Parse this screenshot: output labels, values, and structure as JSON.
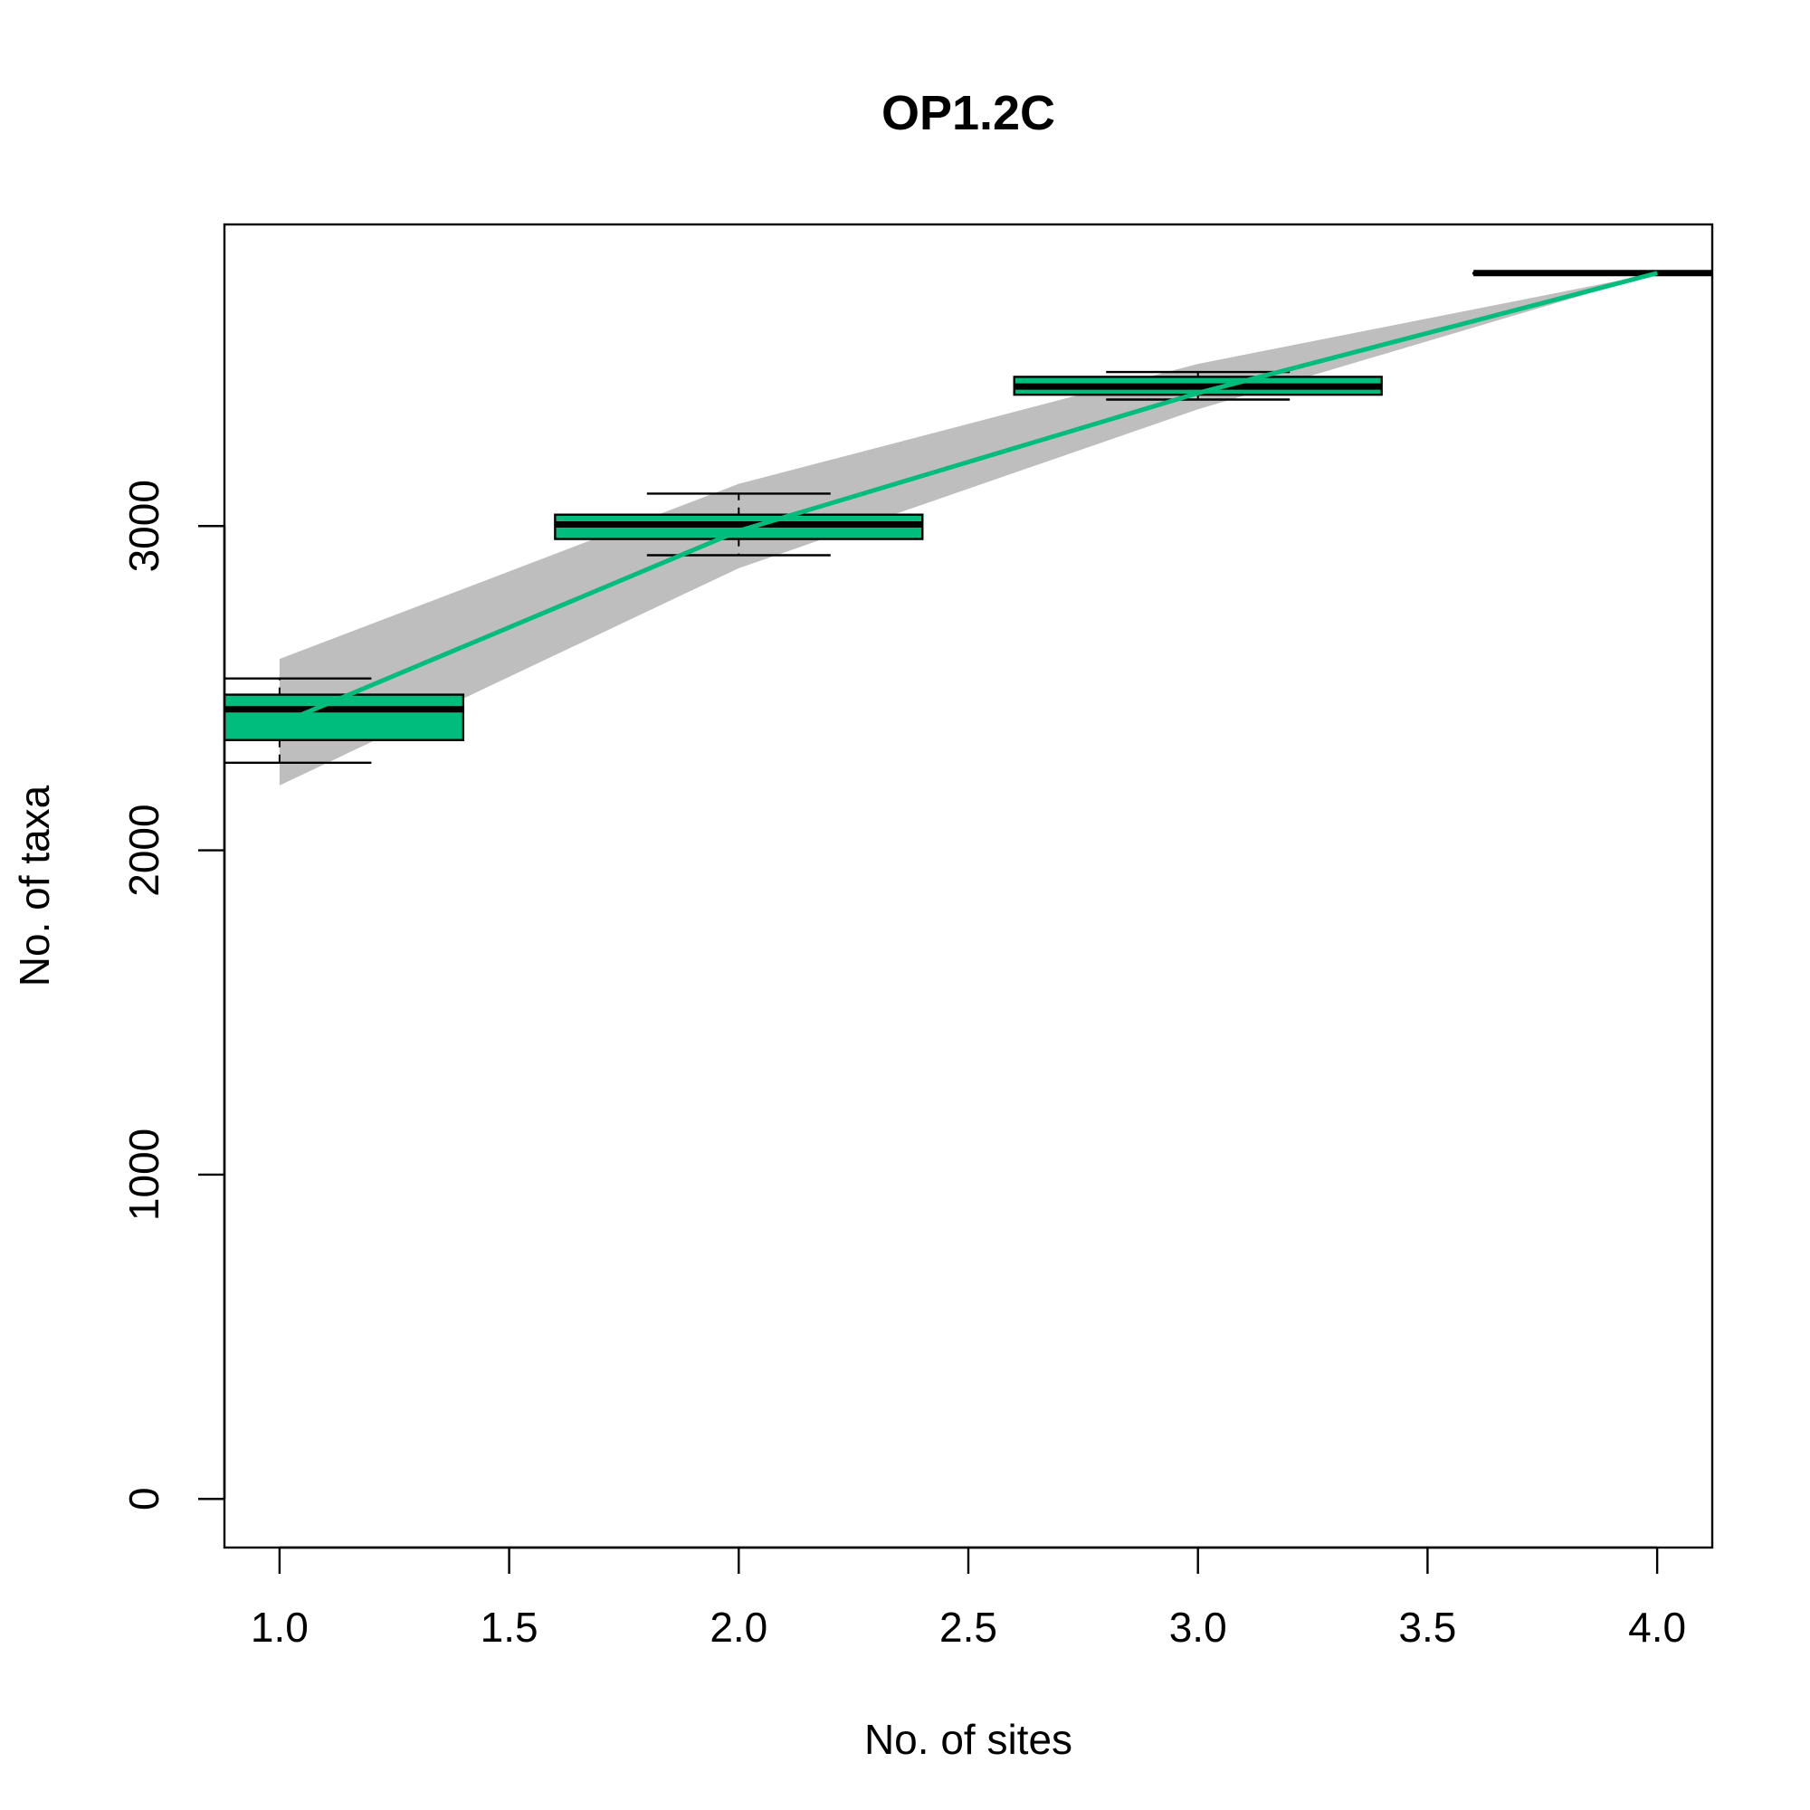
{
  "chart_data": {
    "type": "box",
    "title": "OP1.2C",
    "xlabel": "No. of sites",
    "ylabel": "No. of taxa",
    "xlim": [
      0.88,
      4.12
    ],
    "ylim": [
      -150,
      3930
    ],
    "xticks": [
      "1.0",
      "1.5",
      "2.0",
      "2.5",
      "3.0",
      "3.5",
      "4.0"
    ],
    "yticks": [
      "0",
      "1000",
      "2000",
      "3000"
    ],
    "grid": false,
    "colors": {
      "box_fill": "#00BD7D",
      "curve": "#00BD7D",
      "ci_band": "#BEBEBE",
      "ink": "#000000"
    },
    "curve": {
      "x": [
        1,
        2,
        3,
        4
      ],
      "y": [
        2390,
        2985,
        3410,
        3780
      ]
    },
    "ci_band": {
      "x": [
        1,
        2,
        3,
        4
      ],
      "upper": [
        2590,
        3130,
        3500,
        3780
      ],
      "lower": [
        2200,
        2870,
        3360,
        3780
      ]
    },
    "boxes": [
      {
        "x": 1,
        "whisker_low": 2270,
        "q1": 2340,
        "median": 2435,
        "q3": 2480,
        "whisker_high": 2530
      },
      {
        "x": 2,
        "whisker_low": 2910,
        "q1": 2960,
        "median": 3005,
        "q3": 3035,
        "whisker_high": 3100
      },
      {
        "x": 3,
        "whisker_low": 3390,
        "q1": 3405,
        "median": 3430,
        "q3": 3460,
        "whisker_high": 3475
      },
      {
        "x": 4,
        "whisker_low": 3780,
        "q1": 3780,
        "median": 3780,
        "q3": 3780,
        "whisker_high": 3780
      }
    ]
  }
}
